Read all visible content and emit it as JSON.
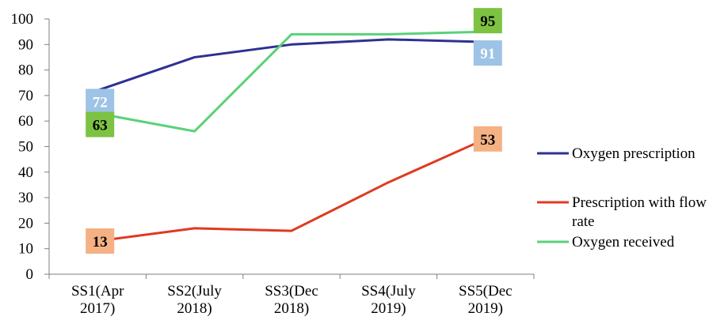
{
  "chart_data": {
    "type": "line",
    "categories": [
      "SS1(Apr 2017)",
      "SS2(July 2018)",
      "SS3(Dec 2018)",
      "SS4(July 2019)",
      "SS5(Dec 2019)"
    ],
    "category_lines": [
      [
        "SS1(Apr",
        "2017)"
      ],
      [
        "SS2(July",
        "2018)"
      ],
      [
        "SS3(Dec",
        "2018)"
      ],
      [
        "SS4(July",
        "2019)"
      ],
      [
        "SS5(Dec",
        "2019)"
      ]
    ],
    "yticks": [
      "0",
      "10",
      "20",
      "30",
      "40",
      "50",
      "60",
      "70",
      "80",
      "90",
      "100"
    ],
    "ylim": [
      0,
      100
    ],
    "grid": false,
    "legend_position": "right",
    "series": [
      {
        "name": "Oxygen prescription",
        "name_lines": [
          "Oxygen prescription"
        ],
        "color": "#2e3192",
        "values": [
          72,
          85,
          90,
          92,
          91
        ],
        "labels": [
          {
            "index": 0,
            "text": "72",
            "bg": "#9dc3e6",
            "text_color": "#ffffff",
            "anchor": "below"
          },
          {
            "index": 4,
            "text": "91",
            "bg": "#9dc3e6",
            "text_color": "#ffffff",
            "anchor": "below"
          }
        ]
      },
      {
        "name": "Prescription with flow rate",
        "name_lines": [
          "Prescription with flow",
          "rate"
        ],
        "color": "#e03a20",
        "values": [
          13,
          18,
          17,
          36,
          53
        ],
        "labels": [
          {
            "index": 0,
            "text": "13",
            "bg": "#f4b183",
            "text_color": "#000000",
            "anchor": "center"
          },
          {
            "index": 4,
            "text": "53",
            "bg": "#f4b183",
            "text_color": "#000000",
            "anchor": "center"
          }
        ]
      },
      {
        "name": "Oxygen received",
        "name_lines": [
          "Oxygen received"
        ],
        "color": "#5ad17a",
        "values": [
          63,
          56,
          94,
          94,
          95
        ],
        "labels": [
          {
            "index": 0,
            "text": "63",
            "bg": "#7dc242",
            "text_color": "#000000",
            "anchor": "below"
          },
          {
            "index": 4,
            "text": "95",
            "bg": "#7dc242",
            "text_color": "#000000",
            "anchor": "above"
          }
        ]
      }
    ]
  }
}
